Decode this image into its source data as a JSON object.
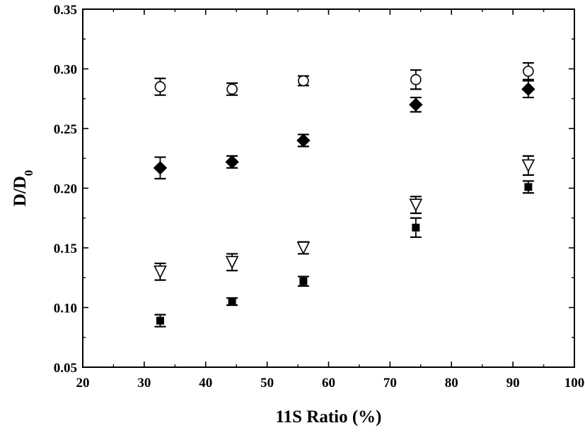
{
  "chart_data": {
    "type": "scatter",
    "xlabel": "11S Ratio (%)",
    "ylabel": "D/D",
    "ylabel_subscript": "0",
    "xlim": [
      20,
      100
    ],
    "ylim": [
      0.05,
      0.35
    ],
    "xticks": [
      "20",
      "30",
      "40",
      "50",
      "60",
      "70",
      "80",
      "90",
      "100"
    ],
    "yticks": [
      "0.05",
      "0.10",
      "0.15",
      "0.20",
      "0.25",
      "0.30",
      "0.35"
    ],
    "grid": false,
    "x": [
      32.6,
      44.3,
      55.9,
      74.2,
      92.5
    ],
    "series": [
      {
        "marker": "open-circle",
        "values": [
          0.285,
          0.283,
          0.29,
          0.291,
          0.298
        ],
        "errors": [
          0.007,
          0.005,
          0.004,
          0.008,
          0.007
        ]
      },
      {
        "marker": "filled-diamond",
        "values": [
          0.217,
          0.222,
          0.24,
          0.27,
          0.283
        ],
        "errors": [
          0.009,
          0.005,
          0.005,
          0.006,
          0.007
        ]
      },
      {
        "marker": "open-triangle-down",
        "values": [
          0.13,
          0.138,
          0.15,
          0.186,
          0.219
        ],
        "errors": [
          0.007,
          0.007,
          0.005,
          0.007,
          0.008
        ]
      },
      {
        "marker": "filled-square",
        "values": [
          0.089,
          0.105,
          0.122,
          0.167,
          0.201
        ],
        "errors": [
          0.005,
          0.003,
          0.004,
          0.008,
          0.005
        ]
      }
    ]
  }
}
